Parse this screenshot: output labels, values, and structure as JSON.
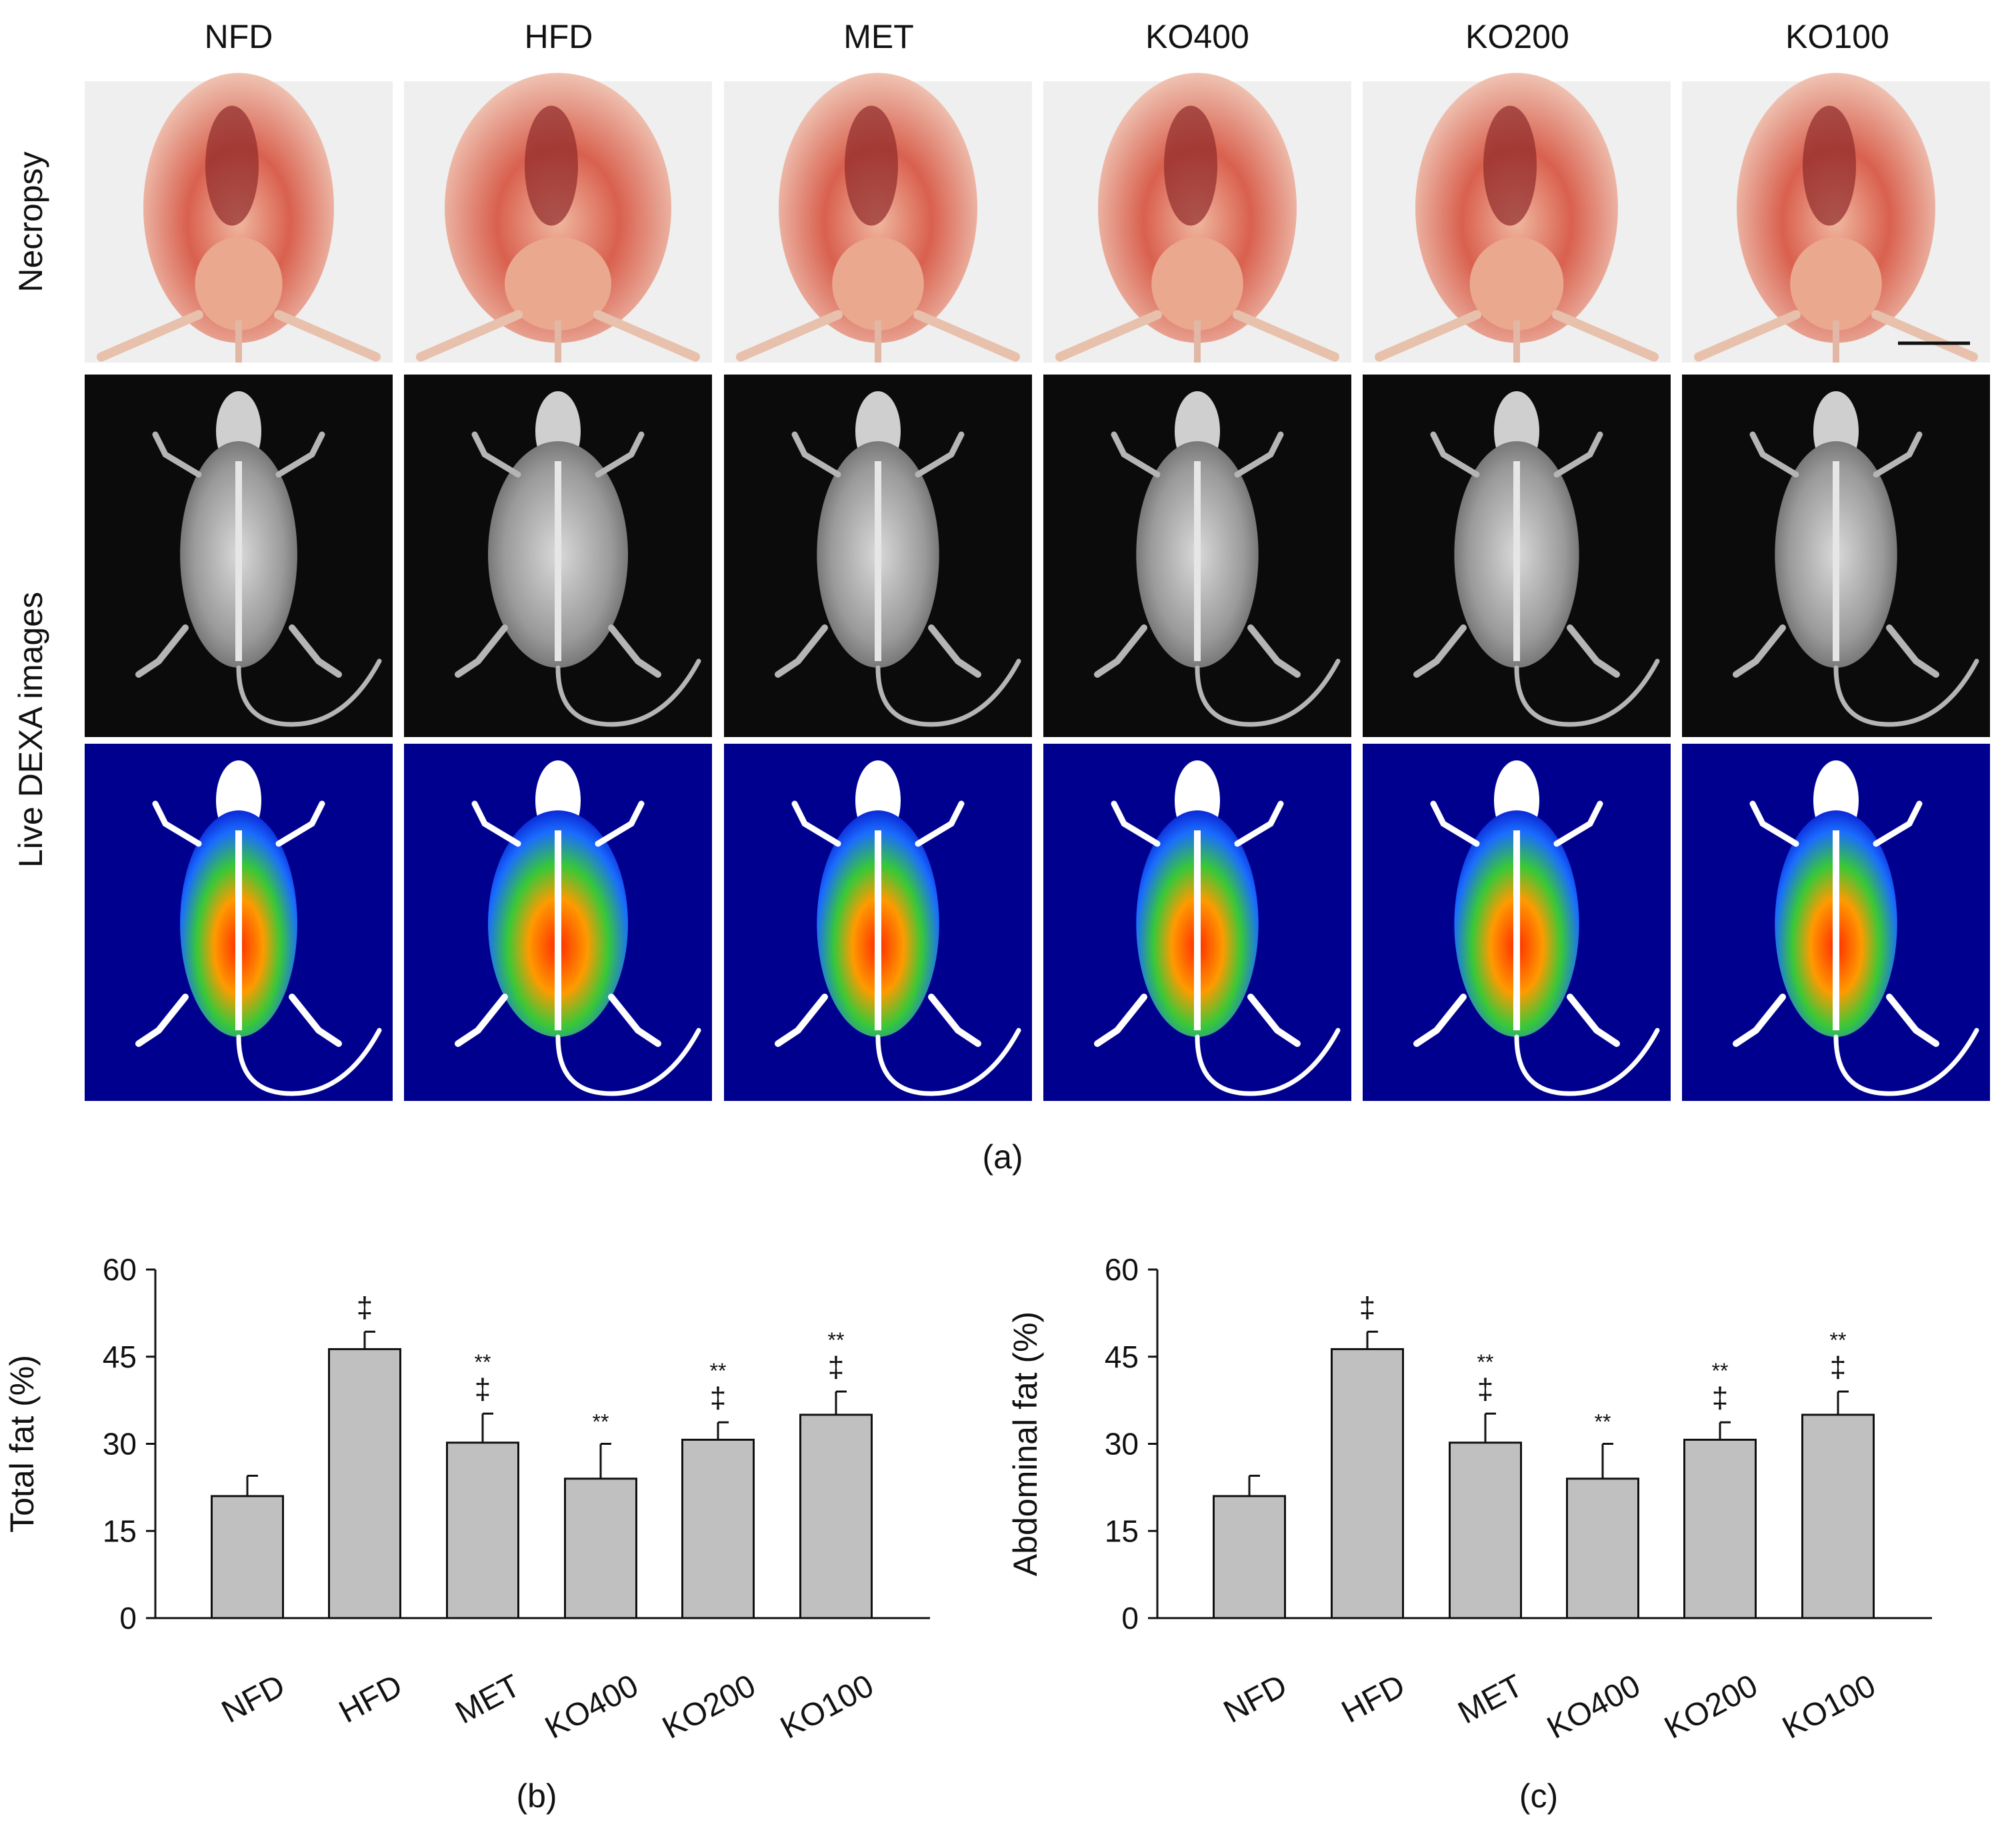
{
  "groups": [
    "NFD",
    "HFD",
    "MET",
    "KO400",
    "KO200",
    "KO100"
  ],
  "row_labels": {
    "necropsy": "Necropsy",
    "dexa": "Live DEXA images"
  },
  "panel_labels": {
    "a": "(a)",
    "b": "(b)",
    "c": "(c)"
  },
  "colors": {
    "bar_fill": "#c0c0c0",
    "dexa_bg": "#00008f",
    "xray_bg": "#0b0b0b",
    "necropsy_bg": "#efefef"
  },
  "chart_data": [
    {
      "type": "bar",
      "title": "",
      "xlabel": "",
      "ylabel": "Total fat (%)",
      "ylim": [
        0,
        60
      ],
      "yticks": [
        0,
        15,
        30,
        45,
        60
      ],
      "categories": [
        "NFD",
        "HFD",
        "MET",
        "KO400",
        "KO200",
        "KO100"
      ],
      "values": [
        21,
        46.3,
        30.2,
        24,
        30.7,
        35
      ],
      "errors": [
        3.5,
        3,
        5,
        6,
        3,
        4
      ],
      "annotations": [
        [],
        [
          "‡"
        ],
        [
          "**",
          "‡"
        ],
        [
          "**"
        ],
        [
          "**",
          "‡"
        ],
        [
          "**",
          "‡"
        ]
      ],
      "caption": "(b)"
    },
    {
      "type": "bar",
      "title": "",
      "xlabel": "",
      "ylabel": "Abdominal fat (%)",
      "ylim": [
        0,
        60
      ],
      "yticks": [
        0,
        15,
        30,
        45,
        60
      ],
      "categories": [
        "NFD",
        "HFD",
        "MET",
        "KO400",
        "KO200",
        "KO100"
      ],
      "values": [
        21,
        46.3,
        30.2,
        24,
        30.7,
        35
      ],
      "errors": [
        3.5,
        3,
        5,
        6,
        3,
        4
      ],
      "annotations": [
        [],
        [
          "‡"
        ],
        [
          "**",
          "‡"
        ],
        [
          "**"
        ],
        [
          "**",
          "‡"
        ],
        [
          "**",
          "‡"
        ]
      ],
      "caption": "(c)"
    }
  ]
}
